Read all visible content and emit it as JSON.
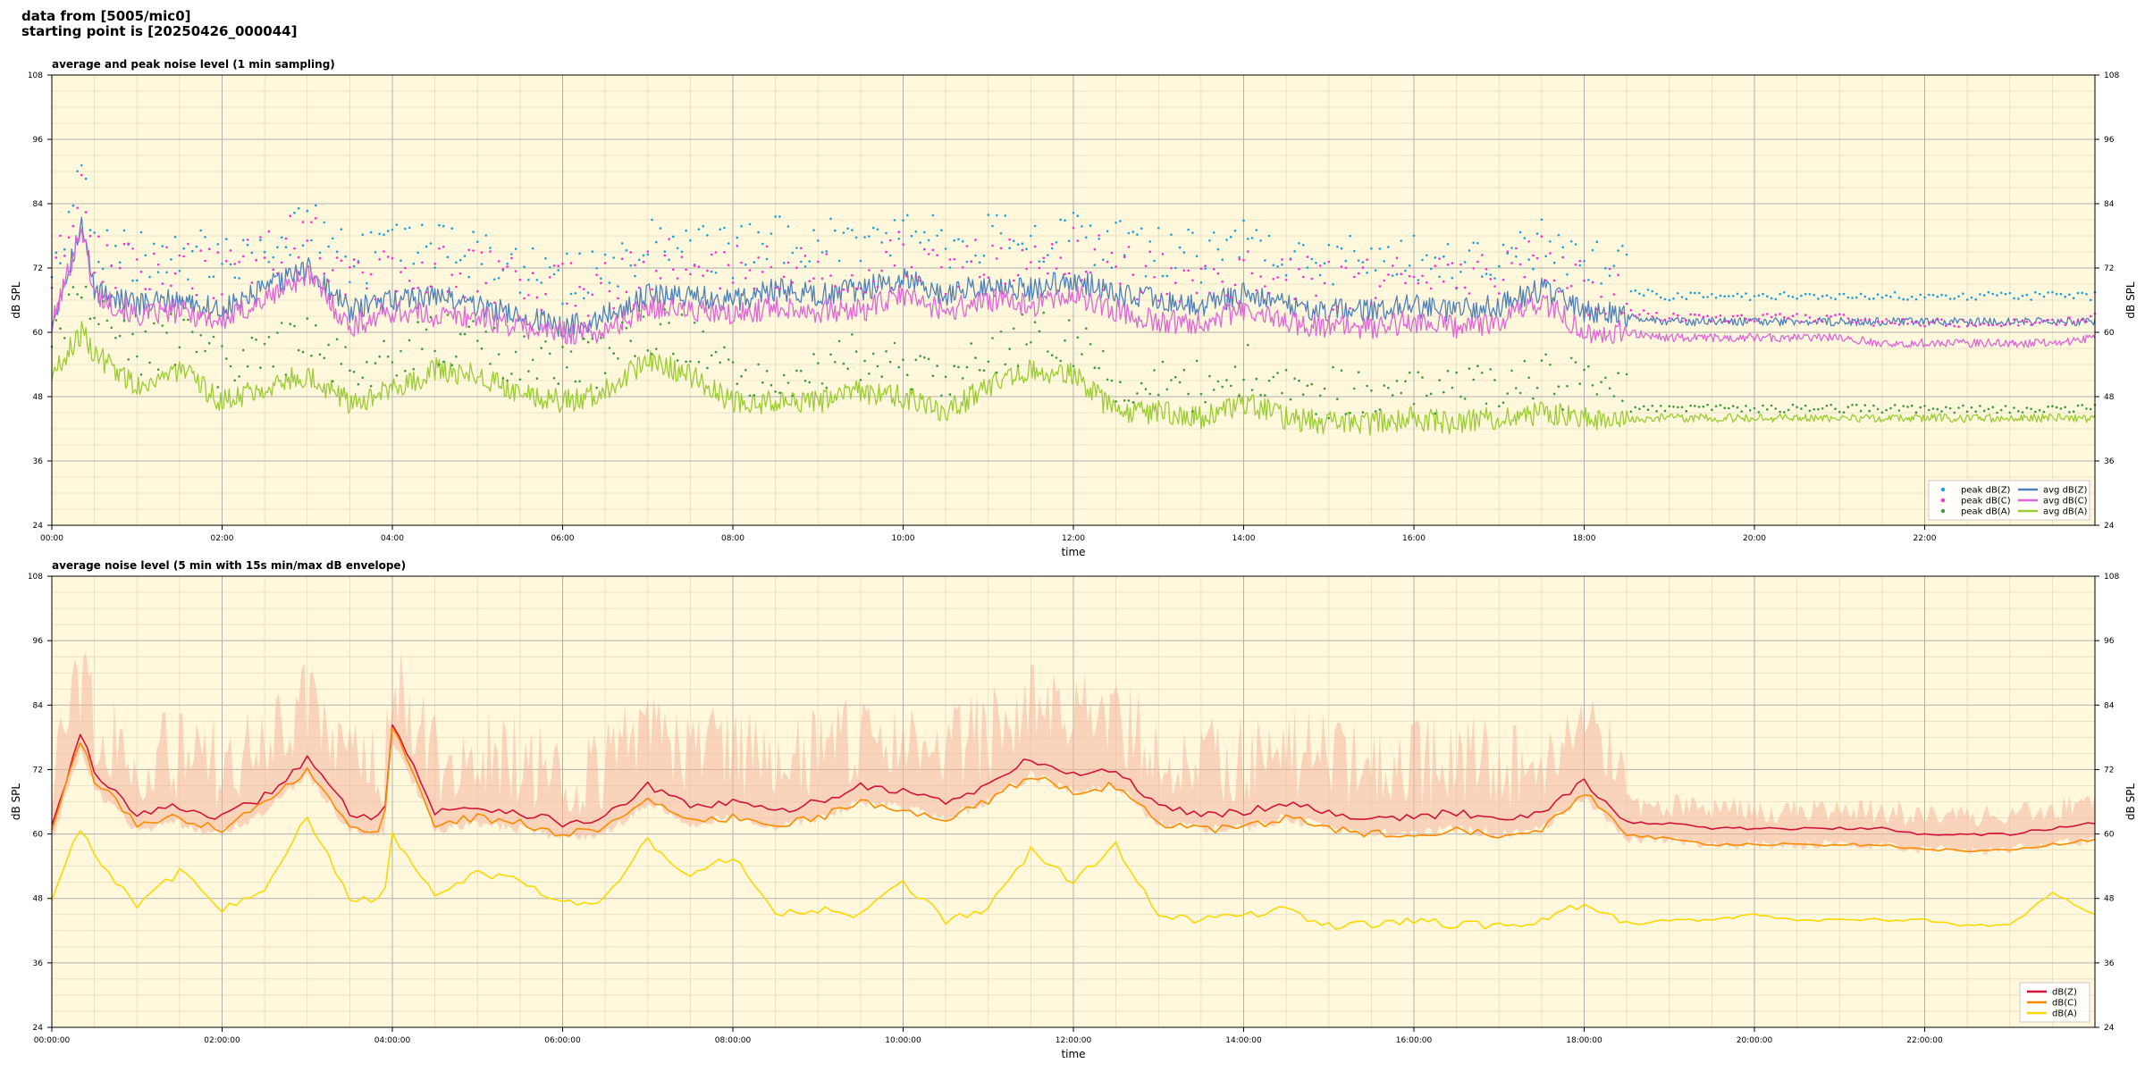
{
  "header": {
    "line1": "data from [5005/mic0]",
    "line2": "starting point is [20250426_000044]"
  },
  "colors": {
    "plot_bg": "#fff8dc",
    "z": "#4f81bd",
    "c": "#e066d8",
    "a": "#9acd32",
    "peak_z": "#1f9fd8",
    "peak_c": "#ff2ad4",
    "peak_a": "#3c9a3c",
    "z2": "#d2143c",
    "c2": "#ff8c00",
    "a2": "#ffd700",
    "envelope": "#f5b5a0"
  },
  "chart_data": [
    {
      "type": "line",
      "title": "average and peak noise level (1 min sampling)",
      "xlabel": "time",
      "ylabel": "dB SPL",
      "ylim": [
        24,
        108
      ],
      "xlim_hours": [
        0,
        24
      ],
      "yticks": [
        "24",
        "36",
        "48",
        "60",
        "72",
        "84",
        "96",
        "108"
      ],
      "xticks": [
        "00:00",
        "02:00",
        "04:00",
        "06:00",
        "08:00",
        "10:00",
        "12:00",
        "14:00",
        "16:00",
        "18:00",
        "20:00",
        "22:00"
      ],
      "grid": true,
      "legend_position": "lower-right",
      "legend": [
        {
          "label": "peak dB(Z)",
          "kind": "dot",
          "color": "peak_z"
        },
        {
          "label": "peak dB(C)",
          "kind": "dot",
          "color": "peak_c"
        },
        {
          "label": "peak dB(A)",
          "kind": "dot",
          "color": "peak_a"
        },
        {
          "label": "avg dB(Z)",
          "kind": "line",
          "color": "z"
        },
        {
          "label": "avg dB(C)",
          "kind": "line",
          "color": "c"
        },
        {
          "label": "avg dB(A)",
          "kind": "line",
          "color": "a"
        }
      ],
      "series": [
        {
          "name": "avg dB(Z)",
          "style": "line",
          "color": "z",
          "x": [
            0,
            0.35,
            0.5,
            1,
            1.5,
            2,
            2.5,
            3,
            3.5,
            4,
            4.5,
            5,
            5.5,
            6,
            6.5,
            7,
            7.5,
            8,
            8.5,
            9,
            9.5,
            10,
            10.5,
            11,
            11.5,
            12,
            12.5,
            13,
            13.5,
            14,
            14.5,
            15,
            15.5,
            16,
            16.5,
            17,
            17.5,
            18,
            18.5,
            19,
            19.5,
            20,
            20.5,
            21,
            21.5,
            22,
            22.5,
            23,
            23.5,
            24
          ],
          "y": [
            62,
            80,
            68,
            65,
            66,
            64,
            68,
            72,
            64,
            66,
            67,
            65,
            63,
            61,
            63,
            67,
            67,
            66,
            68,
            67,
            68,
            70,
            67,
            69,
            68,
            70,
            67,
            66,
            65,
            67,
            65,
            64,
            64,
            65,
            64,
            65,
            68,
            64,
            63,
            62,
            62,
            62,
            62,
            62,
            62,
            62,
            62,
            62,
            62,
            62
          ]
        },
        {
          "name": "avg dB(C)",
          "style": "line",
          "color": "c",
          "x": [
            0,
            0.35,
            0.5,
            1,
            1.5,
            2,
            2.5,
            3,
            3.5,
            4,
            4.5,
            5,
            5.5,
            6,
            6.5,
            7,
            7.5,
            8,
            8.5,
            9,
            9.5,
            10,
            10.5,
            11,
            11.5,
            12,
            12.5,
            13,
            13.5,
            14,
            14.5,
            15,
            15.5,
            16,
            16.5,
            17,
            17.5,
            18,
            18.5,
            19,
            19.5,
            20,
            20.5,
            21,
            21.5,
            22,
            22.5,
            23,
            23.5,
            24
          ],
          "y": [
            61,
            80,
            67,
            63,
            64,
            62,
            66,
            71,
            61,
            64,
            63,
            63,
            61,
            60,
            60,
            65,
            64,
            63,
            65,
            64,
            64,
            67,
            64,
            66,
            65,
            67,
            64,
            62,
            62,
            64,
            62,
            61,
            61,
            62,
            61,
            62,
            66,
            60,
            60,
            59,
            59,
            59,
            59,
            59,
            58,
            58,
            58,
            58,
            58,
            59
          ]
        },
        {
          "name": "avg dB(A)",
          "style": "line",
          "color": "a",
          "x": [
            0,
            0.35,
            0.5,
            1,
            1.5,
            2,
            2.5,
            3,
            3.5,
            4,
            4.5,
            5,
            5.5,
            6,
            6.5,
            7,
            7.5,
            8,
            8.5,
            9,
            9.5,
            10,
            10.5,
            11,
            11.5,
            12,
            12.5,
            13,
            13.5,
            14,
            14.5,
            15,
            15.5,
            16,
            16.5,
            17,
            17.5,
            18,
            18.5,
            19,
            19.5,
            20,
            20.5,
            21,
            21.5,
            22,
            22.5,
            23,
            23.5,
            24
          ],
          "y": [
            52,
            60,
            56,
            50,
            53,
            47,
            50,
            52,
            47,
            49,
            53,
            52,
            49,
            47,
            49,
            55,
            52,
            47,
            47,
            47,
            49,
            48,
            45,
            50,
            53,
            52,
            45,
            45,
            44,
            47,
            44,
            43,
            43,
            44,
            43,
            44,
            45,
            44,
            44,
            44,
            44,
            44,
            44,
            44,
            44,
            44,
            44,
            44,
            44,
            44
          ]
        }
      ],
      "peak_offsets": {
        "peak dB(Z)": 4,
        "peak dB(C)": 3,
        "peak dB(A)": 1
      }
    },
    {
      "type": "line",
      "title": "average noise level (5 min with 15s min/max dB envelope)",
      "xlabel": "time",
      "ylabel": "dB SPL",
      "ylim": [
        24,
        108
      ],
      "xlim_hours": [
        0,
        24
      ],
      "yticks": [
        "24",
        "36",
        "48",
        "60",
        "72",
        "84",
        "96",
        "108"
      ],
      "xticks": [
        "00:00:00",
        "02:00:00",
        "04:00:00",
        "06:00:00",
        "08:00:00",
        "10:00:00",
        "12:00:00",
        "14:00:00",
        "16:00:00",
        "18:00:00",
        "20:00:00",
        "22:00:00"
      ],
      "grid": true,
      "legend_position": "lower-right",
      "legend": [
        {
          "label": "dB(Z)",
          "kind": "line",
          "color": "z2"
        },
        {
          "label": "dB(C)",
          "kind": "line",
          "color": "c2"
        },
        {
          "label": "dB(A)",
          "kind": "line",
          "color": "a2"
        }
      ],
      "series": [
        {
          "name": "dB(Z)",
          "style": "line",
          "color": "z2",
          "x": [
            0,
            0.35,
            0.5,
            1,
            1.5,
            2,
            2.5,
            3,
            3.5,
            3.9,
            4,
            4.5,
            5,
            5.5,
            6,
            6.5,
            7,
            7.5,
            8,
            8.5,
            9,
            9.5,
            10,
            10.5,
            11,
            11.5,
            12,
            12.5,
            13,
            13.5,
            14,
            14.5,
            15,
            15.5,
            16,
            16.5,
            17,
            17.5,
            18,
            18.5,
            19,
            19.5,
            20,
            20.5,
            21,
            21.5,
            22,
            22.5,
            23,
            23.5,
            24
          ],
          "y": [
            62,
            79,
            71,
            64,
            65,
            63,
            67,
            74,
            64,
            63,
            81,
            64,
            65,
            64,
            62,
            63,
            69,
            65,
            66,
            64,
            66,
            69,
            68,
            66,
            69,
            74,
            71,
            72,
            65,
            64,
            64,
            66,
            64,
            63,
            63,
            64,
            63,
            64,
            70,
            62,
            62,
            61,
            61,
            61,
            61,
            61,
            60,
            60,
            60,
            61,
            62
          ]
        },
        {
          "name": "dB(C)",
          "style": "line",
          "color": "c2",
          "x": [
            0,
            0.35,
            0.5,
            1,
            1.5,
            2,
            2.5,
            3,
            3.5,
            3.9,
            4,
            4.5,
            5,
            5.5,
            6,
            6.5,
            7,
            7.5,
            8,
            8.5,
            9,
            9.5,
            10,
            10.5,
            11,
            11.5,
            12,
            12.5,
            13,
            13.5,
            14,
            14.5,
            15,
            15.5,
            16,
            16.5,
            17,
            17.5,
            18,
            18.5,
            19,
            19.5,
            20,
            20.5,
            21,
            21.5,
            22,
            22.5,
            23,
            23.5,
            24
          ],
          "y": [
            61,
            78,
            70,
            62,
            63,
            61,
            66,
            72,
            61,
            61,
            80,
            62,
            63,
            62,
            60,
            61,
            67,
            62,
            63,
            62,
            63,
            66,
            64,
            63,
            66,
            71,
            68,
            69,
            62,
            61,
            61,
            63,
            61,
            60,
            60,
            61,
            60,
            61,
            68,
            60,
            59,
            58,
            58,
            58,
            58,
            58,
            57,
            57,
            57,
            58,
            59
          ]
        },
        {
          "name": "dB(A)",
          "style": "line",
          "color": "a2",
          "x": [
            0,
            0.35,
            0.5,
            1,
            1.5,
            2,
            2.5,
            3,
            3.5,
            3.9,
            4,
            4.5,
            5,
            5.5,
            6,
            6.5,
            7,
            7.5,
            8,
            8.5,
            9,
            9.5,
            10,
            10.5,
            11,
            11.5,
            12,
            12.5,
            13,
            13.5,
            14,
            14.5,
            15,
            15.5,
            16,
            16.5,
            17,
            17.5,
            18,
            18.5,
            19,
            19.5,
            20,
            20.5,
            21,
            21.5,
            22,
            22.5,
            23,
            23.5,
            24
          ],
          "y": [
            48,
            62,
            56,
            47,
            53,
            46,
            50,
            63,
            48,
            48,
            60,
            48,
            53,
            51,
            47,
            48,
            59,
            52,
            56,
            45,
            46,
            45,
            51,
            44,
            46,
            57,
            51,
            58,
            45,
            44,
            45,
            46,
            43,
            43,
            44,
            43,
            43,
            44,
            47,
            43,
            44,
            44,
            45,
            44,
            44,
            44,
            44,
            43,
            43,
            49,
            45
          ]
        }
      ],
      "envelope_spread": 8
    }
  ]
}
